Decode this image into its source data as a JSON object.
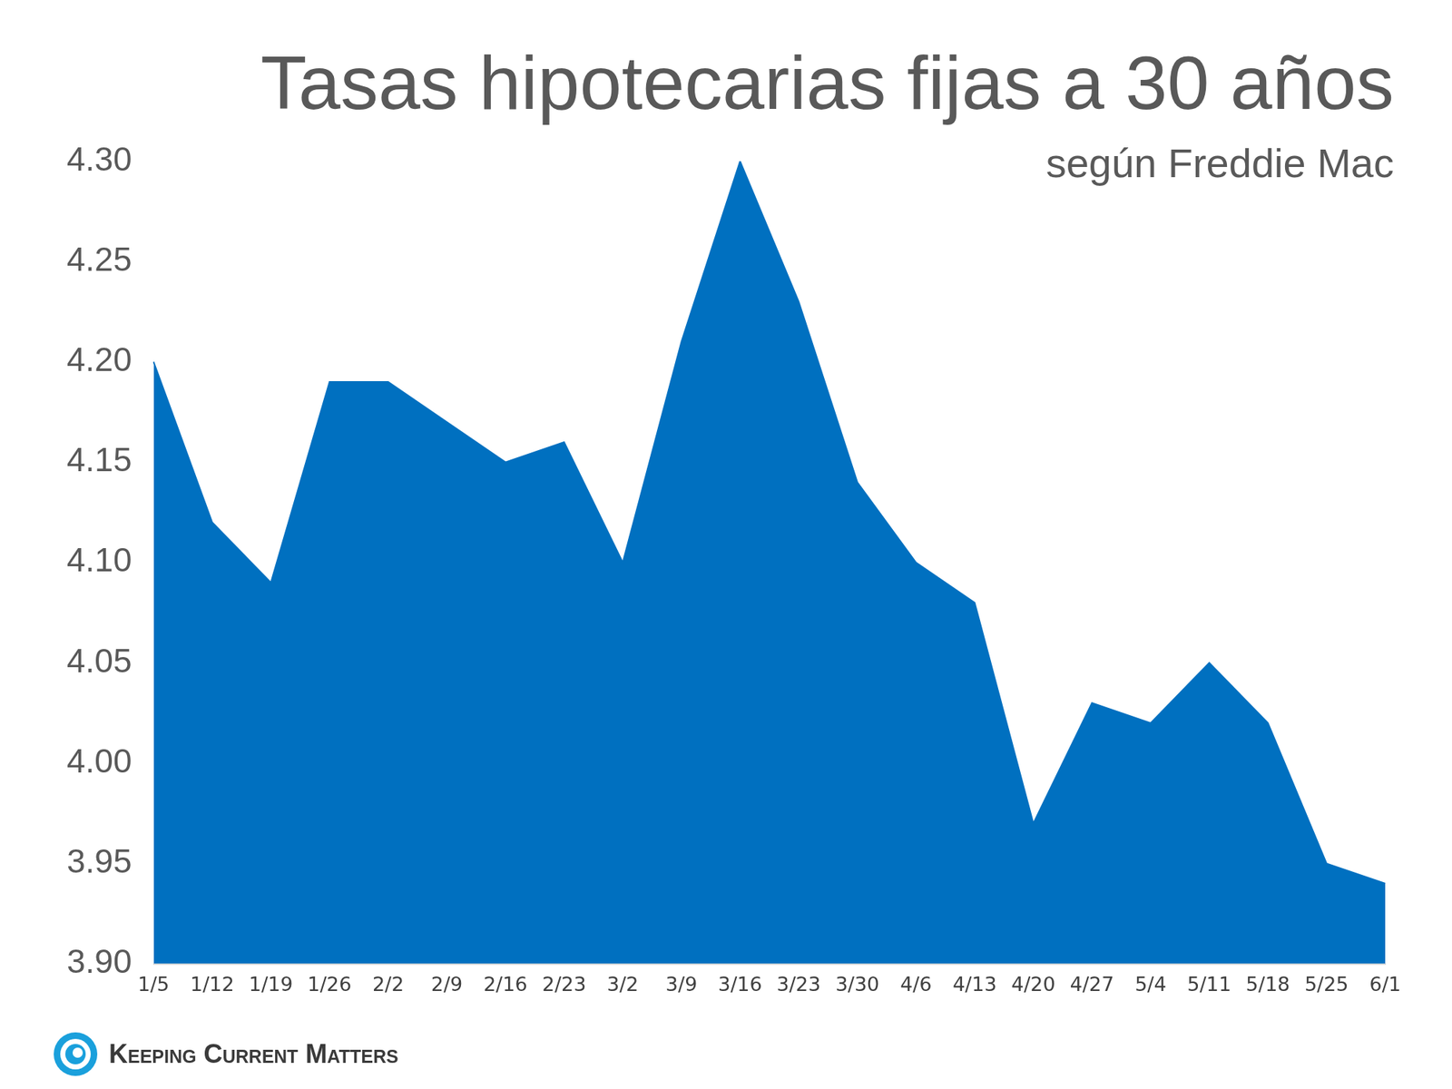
{
  "chart_data": {
    "type": "area",
    "title": "Tasas hipotecarias fijas a 30 años",
    "subtitle": "según Freddie Mac",
    "source": "Keeping Current Matters",
    "categories": [
      "1/5",
      "1/12",
      "1/19",
      "1/26",
      "2/2",
      "2/9",
      "2/16",
      "2/23",
      "3/2",
      "3/9",
      "3/16",
      "3/23",
      "3/30",
      "4/6",
      "4/13",
      "4/20",
      "4/27",
      "5/4",
      "5/11",
      "5/18",
      "5/25",
      "6/1"
    ],
    "values": [
      4.2,
      4.12,
      4.09,
      4.19,
      4.19,
      4.17,
      4.15,
      4.16,
      4.1,
      4.21,
      4.3,
      4.23,
      4.14,
      4.1,
      4.08,
      3.97,
      4.03,
      4.02,
      4.05,
      4.02,
      3.95,
      3.94
    ],
    "color": "#0070c0",
    "ylim": [
      3.9,
      4.3
    ],
    "yticks": [
      {
        "value": 3.9,
        "label": "3.90"
      },
      3.95,
      {
        "value": 4,
        "label": "4.00"
      },
      4.05,
      {
        "value": 4.1,
        "label": "4.10"
      },
      4.15,
      {
        "value": 4.2,
        "label": "4.20"
      },
      4.25,
      {
        "value": 4.3,
        "label": "4.30"
      }
    ],
    "grid": false
  }
}
